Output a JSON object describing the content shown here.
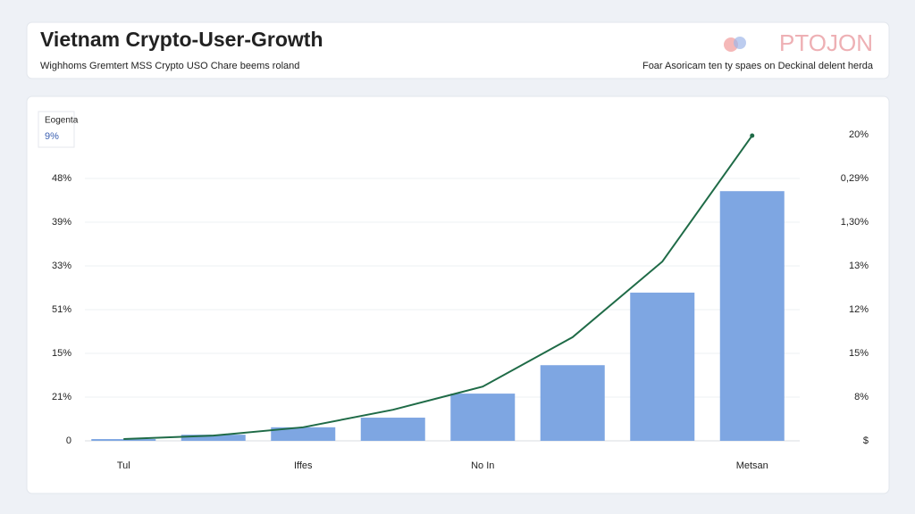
{
  "chart_data": {
    "type": "bar",
    "title": "Vietnam Crypto-User-Growth",
    "subtitle": "Wighhoms Gremtert MSS Crypto USO Chare beems roland",
    "brand": "PTOJON",
    "note": "Foar Asoricam ten ty spaes on Deckinal delent herda",
    "legend": {
      "title": "Eogenta",
      "entries": [
        "9%"
      ]
    },
    "categories": [
      "Tul",
      null,
      "Iffes",
      null,
      "No In",
      null,
      null,
      "Metsan"
    ],
    "series": [
      {
        "type": "bar",
        "color": "#7ea6e2",
        "values": [
          0.04,
          0.14,
          0.31,
          0.53,
          1.08,
          1.73,
          3.39,
          5.71
        ]
      },
      {
        "type": "line",
        "color": "#1f6b47",
        "axis": "y2",
        "values": [
          0.04,
          0.12,
          0.31,
          0.71,
          1.24,
          2.37,
          4.1,
          6.98
        ]
      }
    ],
    "ylim": [
      0,
      7
    ],
    "yticks": [
      0,
      {
        "value": 1,
        "label": "21%"
      },
      {
        "value": 2,
        "label": "15%"
      },
      {
        "value": 3,
        "label": "51%"
      },
      {
        "value": 4,
        "label": "33%"
      },
      {
        "value": 5,
        "label": "39%"
      },
      {
        "value": 6,
        "label": "48%"
      }
    ],
    "y2lim": [
      0,
      7
    ],
    "y2ticks": [
      {
        "value": 0,
        "label": "$"
      },
      {
        "value": 1,
        "label": "8%"
      },
      {
        "value": 2,
        "label": "15%"
      },
      {
        "value": 3,
        "label": "12%"
      },
      {
        "value": 4,
        "label": "13%"
      },
      {
        "value": 5,
        "label": "1,30%"
      },
      {
        "value": 6,
        "label": "0,29%"
      },
      {
        "value": 7,
        "label": "20%"
      }
    ],
    "grid": true
  }
}
